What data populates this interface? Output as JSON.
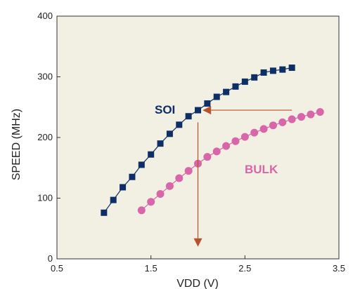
{
  "chart_data": {
    "type": "line",
    "xlabel": "VDD (V)",
    "ylabel": "SPEED  (MHz)",
    "xlim": [
      0.5,
      3.5
    ],
    "ylim": [
      0,
      400
    ],
    "xticks": [
      0.5,
      1.5,
      2.5,
      3.5
    ],
    "xtick_labels": [
      "0.5",
      "1.5",
      "2.5",
      "3.5"
    ],
    "yticks": [
      0,
      100,
      200,
      300,
      400
    ],
    "ytick_labels": [
      "0",
      "100",
      "200",
      "300",
      "400"
    ],
    "grid": false,
    "background": "#f2efe3",
    "series": [
      {
        "name": "SOI",
        "color": "#0d2f66",
        "marker": "square",
        "x": [
          1.0,
          1.1,
          1.2,
          1.3,
          1.4,
          1.5,
          1.6,
          1.7,
          1.8,
          1.9,
          2.0,
          2.1,
          2.2,
          2.3,
          2.4,
          2.5,
          2.6,
          2.7,
          2.8,
          2.9,
          3.0
        ],
        "y": [
          76,
          97,
          118,
          135,
          155,
          172,
          190,
          206,
          221,
          235,
          245,
          256,
          267,
          275,
          284,
          292,
          299,
          307,
          310,
          312,
          315
        ]
      },
      {
        "name": "BULK",
        "color": "#d966a8",
        "marker": "circle",
        "x": [
          1.4,
          1.5,
          1.6,
          1.7,
          1.8,
          1.9,
          2.0,
          2.1,
          2.2,
          2.3,
          2.4,
          2.5,
          2.6,
          2.7,
          2.8,
          2.9,
          3.0,
          3.1,
          3.2,
          3.3
        ],
        "y": [
          80,
          94,
          107,
          120,
          133,
          145,
          157,
          168,
          177,
          186,
          194,
          201,
          208,
          214,
          220,
          225,
          230,
          234,
          238,
          242
        ]
      }
    ],
    "annotations": [
      {
        "type": "arrow",
        "color": "#b5532c",
        "from": [
          3.0,
          245
        ],
        "to": [
          2.05,
          245
        ]
      },
      {
        "type": "arrow",
        "color": "#b5532c",
        "from": [
          2.0,
          225
        ],
        "to": [
          2.0,
          20
        ]
      }
    ]
  }
}
